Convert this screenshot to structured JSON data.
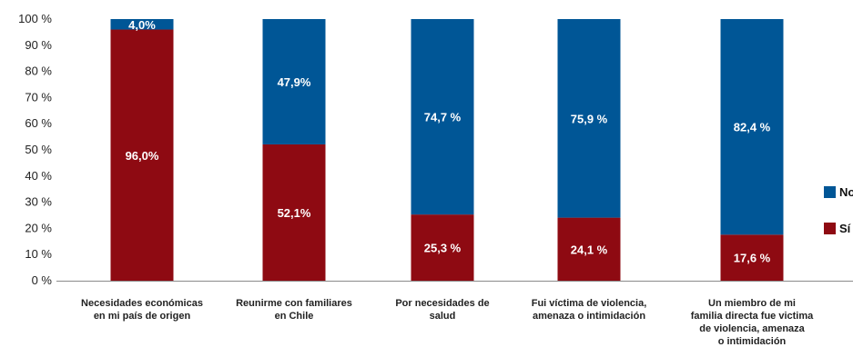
{
  "chart_data": {
    "type": "bar",
    "stacked": true,
    "categories": [
      [
        "Necesidades económicas",
        "en mi país de origen"
      ],
      [
        "Reunirme con familiares",
        "en Chile"
      ],
      [
        "Por necesidades de",
        "salud"
      ],
      [
        "Fui víctima de violencia,",
        "amenaza o intimidación"
      ],
      [
        "Un miembro de mi",
        "familia directa fue victima",
        "de violencia, amenaza",
        "o intimidación"
      ]
    ],
    "series": [
      {
        "name": "Sí",
        "color": "#8e0a12",
        "values": [
          96.0,
          52.1,
          25.3,
          24.1,
          17.6
        ],
        "labels": [
          "96,0%",
          "52,1%",
          "25,3 %",
          "24,1 %",
          "17,6 %"
        ]
      },
      {
        "name": "No",
        "color": "#005696",
        "values": [
          4.0,
          47.9,
          74.7,
          75.9,
          82.4
        ],
        "labels": [
          "4,0%",
          "47,9%",
          "74,7 %",
          "75,9 %",
          "82,4 %"
        ]
      }
    ],
    "yticks": [
      "0 %",
      "10 %",
      "20 %",
      "30 %",
      "40 %",
      "50 %",
      "60 %",
      "70 %",
      "80 %",
      "90 %",
      "100 %"
    ],
    "ylim": [
      0,
      100
    ],
    "legend": {
      "position": "right",
      "items": [
        {
          "label": "No",
          "color": "#005696"
        },
        {
          "label": "Sí",
          "color": "#8e0a12"
        }
      ]
    },
    "grid": false
  }
}
